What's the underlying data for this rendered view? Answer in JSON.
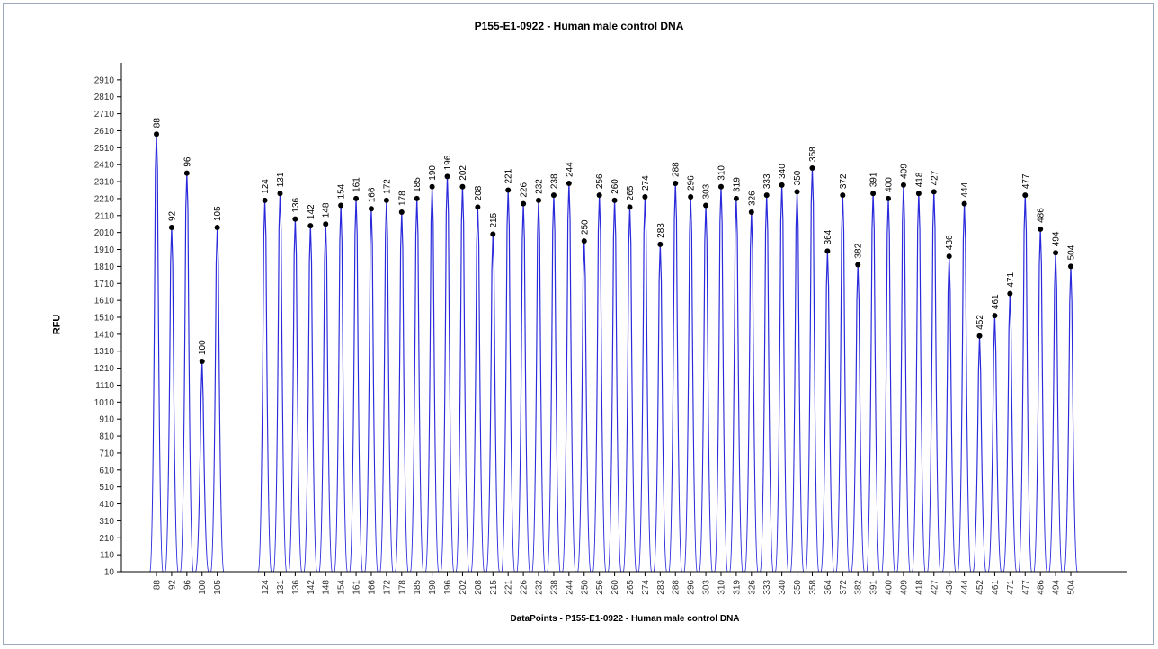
{
  "chart_data": {
    "type": "line",
    "title": "P155-E1-0922 - Human male control DNA",
    "xlabel": "DataPoints - P155-E1-0922 - Human male control DNA",
    "ylabel": "RFU",
    "yticks": [
      10,
      110,
      210,
      310,
      410,
      510,
      610,
      710,
      810,
      910,
      1010,
      1110,
      1210,
      1310,
      1410,
      1510,
      1610,
      1710,
      1810,
      1910,
      2010,
      2110,
      2210,
      2310,
      2410,
      2510,
      2610,
      2710,
      2810,
      2910
    ],
    "ylim": [
      10,
      3010
    ],
    "series_color": "#2a2adc",
    "marker_color": "#000000",
    "peaks": [
      {
        "x": 88,
        "y": 2590
      },
      {
        "x": 92,
        "y": 2040
      },
      {
        "x": 96,
        "y": 2360
      },
      {
        "x": 100,
        "y": 1250
      },
      {
        "x": 105,
        "y": 2040
      },
      {
        "x": 124,
        "y": 2200
      },
      {
        "x": 131,
        "y": 2240
      },
      {
        "x": 136,
        "y": 2090
      },
      {
        "x": 142,
        "y": 2050
      },
      {
        "x": 148,
        "y": 2060
      },
      {
        "x": 154,
        "y": 2170
      },
      {
        "x": 161,
        "y": 2210
      },
      {
        "x": 166,
        "y": 2150
      },
      {
        "x": 172,
        "y": 2200
      },
      {
        "x": 178,
        "y": 2130
      },
      {
        "x": 185,
        "y": 2210
      },
      {
        "x": 190,
        "y": 2280
      },
      {
        "x": 196,
        "y": 2340
      },
      {
        "x": 202,
        "y": 2280
      },
      {
        "x": 208,
        "y": 2160
      },
      {
        "x": 215,
        "y": 2000
      },
      {
        "x": 221,
        "y": 2260
      },
      {
        "x": 226,
        "y": 2180
      },
      {
        "x": 232,
        "y": 2200
      },
      {
        "x": 238,
        "y": 2230
      },
      {
        "x": 244,
        "y": 2300
      },
      {
        "x": 250,
        "y": 1960
      },
      {
        "x": 256,
        "y": 2230
      },
      {
        "x": 260,
        "y": 2200
      },
      {
        "x": 265,
        "y": 2160
      },
      {
        "x": 274,
        "y": 2220
      },
      {
        "x": 283,
        "y": 1940
      },
      {
        "x": 288,
        "y": 2300
      },
      {
        "x": 296,
        "y": 2220
      },
      {
        "x": 303,
        "y": 2170
      },
      {
        "x": 310,
        "y": 2280
      },
      {
        "x": 319,
        "y": 2210
      },
      {
        "x": 326,
        "y": 2130
      },
      {
        "x": 333,
        "y": 2230
      },
      {
        "x": 340,
        "y": 2290
      },
      {
        "x": 350,
        "y": 2250
      },
      {
        "x": 358,
        "y": 2390
      },
      {
        "x": 364,
        "y": 1900
      },
      {
        "x": 372,
        "y": 2230
      },
      {
        "x": 382,
        "y": 1820
      },
      {
        "x": 391,
        "y": 2240
      },
      {
        "x": 400,
        "y": 2210
      },
      {
        "x": 409,
        "y": 2290
      },
      {
        "x": 418,
        "y": 2240
      },
      {
        "x": 427,
        "y": 2250
      },
      {
        "x": 436,
        "y": 1870
      },
      {
        "x": 444,
        "y": 2180
      },
      {
        "x": 452,
        "y": 1400
      },
      {
        "x": 461,
        "y": 1520
      },
      {
        "x": 471,
        "y": 1650
      },
      {
        "x": 477,
        "y": 2230
      },
      {
        "x": 486,
        "y": 2030
      },
      {
        "x": 494,
        "y": 1890
      },
      {
        "x": 504,
        "y": 1810
      }
    ]
  }
}
